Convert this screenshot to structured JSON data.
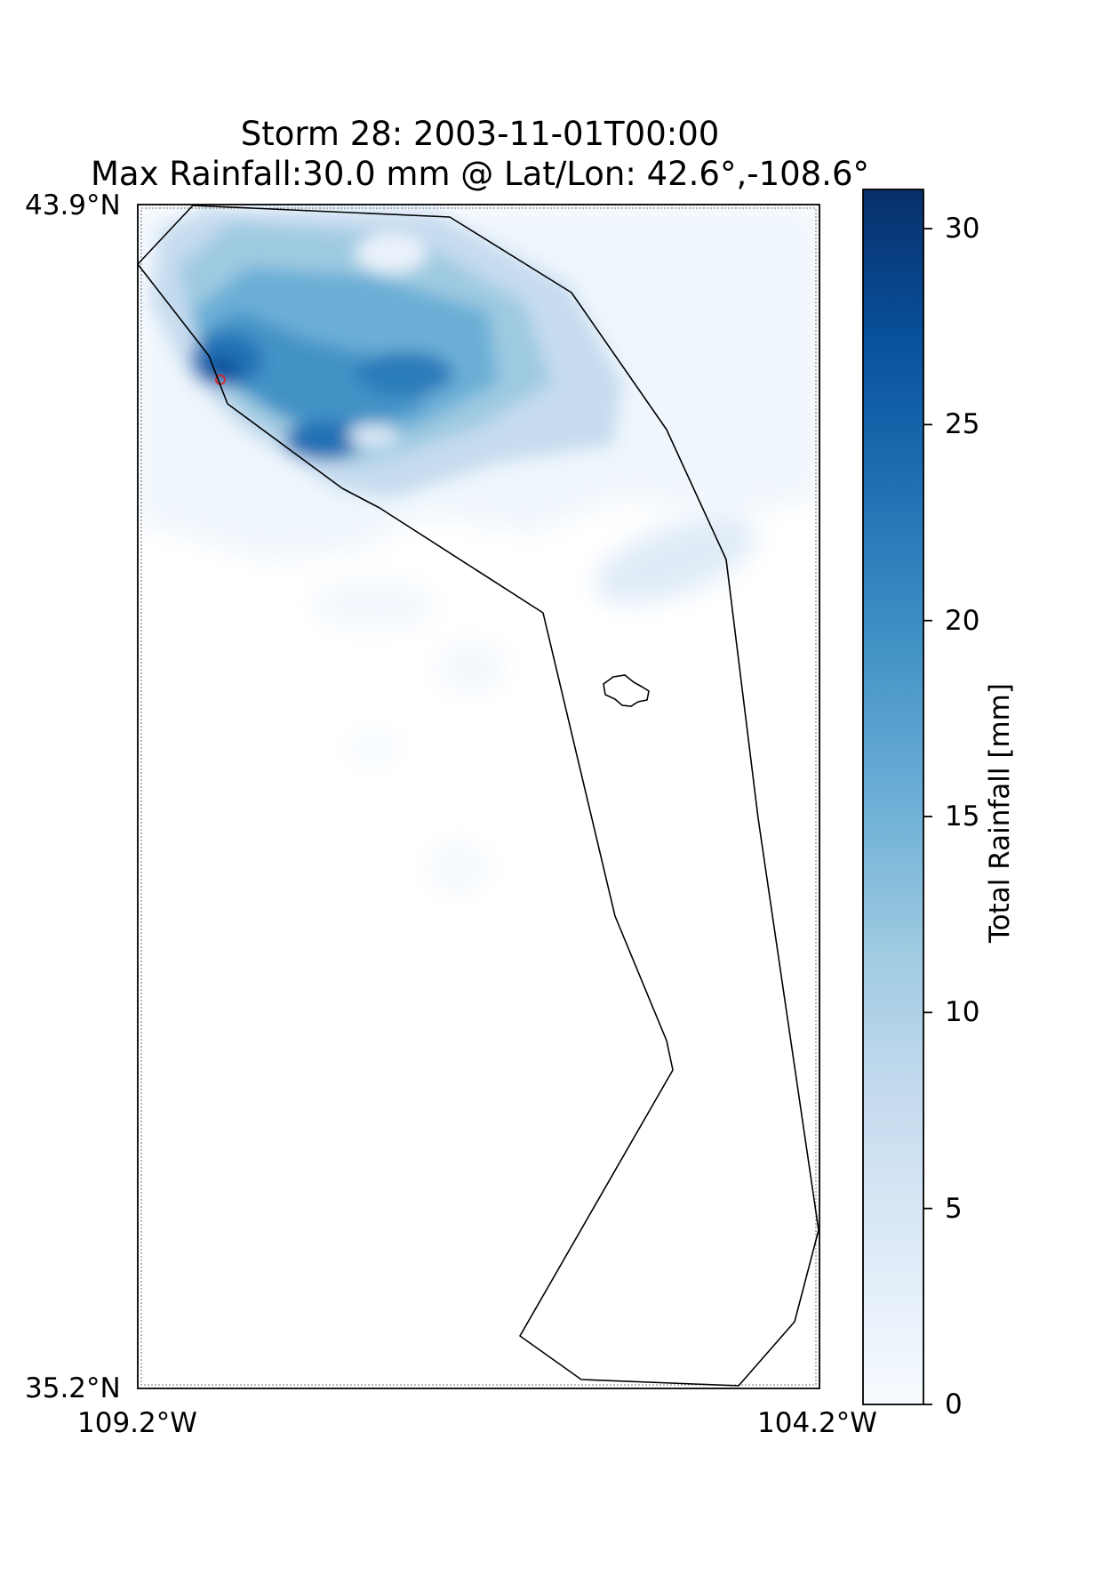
{
  "title": {
    "line1": "Storm 28: 2003-11-01T00:00",
    "line2": "Max Rainfall:30.0 mm @ Lat/Lon:  42.6°,-108.6°"
  },
  "map": {
    "lat_top_label": "43.9°N",
    "lat_bottom_label": "35.2°N",
    "lon_left_label": "109.2°W",
    "lon_right_label": "104.2°W",
    "extent": {
      "lon_min": -109.2,
      "lon_max": -104.2,
      "lat_min": 35.2,
      "lat_max": 43.9
    },
    "max_point": {
      "lat": 42.6,
      "lon": -108.6,
      "marker_color": "#d62728"
    }
  },
  "colorbar": {
    "label": "Total Rainfall [mm]",
    "colormap": "Blues",
    "min": 0,
    "max": 31,
    "ticks": [
      "0",
      "5",
      "10",
      "15",
      "20",
      "25",
      "30"
    ],
    "colors": [
      "#f7fbff",
      "#deebf7",
      "#c6dbef",
      "#9ecae1",
      "#6baed6",
      "#4292c6",
      "#2171b5",
      "#08519c",
      "#08306b"
    ]
  }
}
